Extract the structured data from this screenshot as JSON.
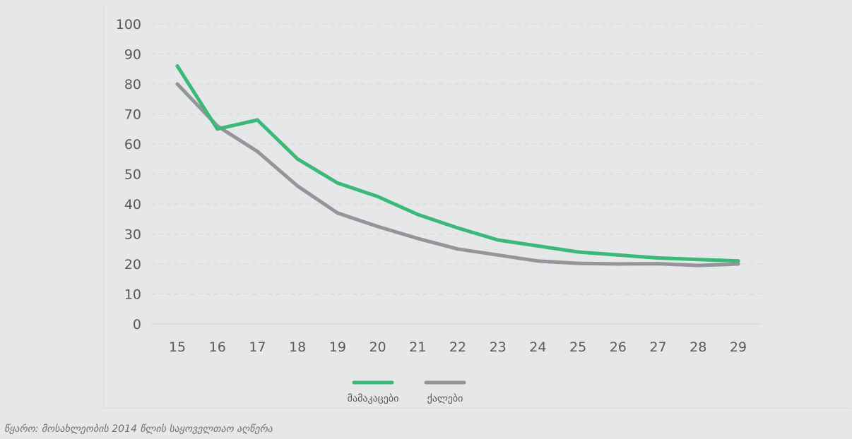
{
  "chart_data": {
    "type": "line",
    "x": [
      15,
      16,
      17,
      18,
      19,
      20,
      21,
      22,
      23,
      24,
      25,
      26,
      27,
      28,
      29
    ],
    "series": [
      {
        "name": "მამაკაცები",
        "color": "#3cb878",
        "values": [
          86,
          65,
          68,
          55,
          47,
          42.5,
          36.5,
          32,
          28,
          26,
          24,
          23,
          22,
          21.5,
          21
        ]
      },
      {
        "name": "ქალები",
        "color": "#939598",
        "values": [
          80,
          66,
          57.5,
          46,
          37,
          32.5,
          28.5,
          25,
          23,
          21,
          20.2,
          20,
          20.1,
          19.5,
          20
        ]
      }
    ],
    "ylim": [
      0,
      100
    ],
    "yticks": [
      0,
      10,
      20,
      30,
      40,
      50,
      60,
      70,
      80,
      90,
      100
    ],
    "grid": "horizontal-dashed",
    "legend_position": "bottom-center"
  },
  "source": "წყარო: მოსახლეობის 2014 წლის საყოველთაო აღწერა"
}
